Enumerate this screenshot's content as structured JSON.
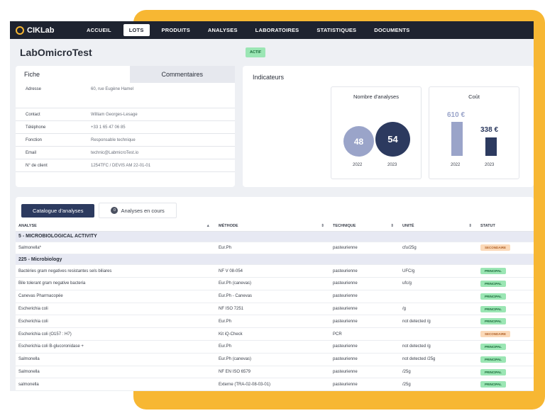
{
  "app": {
    "logo": "CIKLab"
  },
  "nav": [
    "ACCUEIL",
    "LOTS",
    "PRODUITS",
    "ANALYSES",
    "LABORATOIRES",
    "STATISTIQUES",
    "DOCUMENTS"
  ],
  "nav_active": "LOTS",
  "page": {
    "title": "LabOmicroTest",
    "status": "ACTIF"
  },
  "fiche": {
    "tabs": [
      "Fiche",
      "Commentaires"
    ],
    "fields": [
      {
        "label": "Adresse",
        "value": "60, rue Eugène Hamel"
      },
      {
        "label": "Contact",
        "value": "William Georges-Lesage"
      },
      {
        "label": "Téléphone",
        "value": "+33 1 65 47 06 85"
      },
      {
        "label": "Fonction",
        "value": "Responsable technique"
      },
      {
        "label": "Email",
        "value": "technic@LabmicroTest.io"
      },
      {
        "label": "N° de client",
        "value": "1254TFC / DEVIS AM 22-01-01"
      }
    ]
  },
  "indicators": {
    "title": "Indicateurs",
    "analyses": {
      "title": "Nombre d'analyses",
      "values": [
        {
          "year": "2022",
          "value": "48"
        },
        {
          "year": "2023",
          "value": "54"
        }
      ]
    },
    "cost": {
      "title": "Coût",
      "values": [
        {
          "year": "2022",
          "value": "610 €"
        },
        {
          "year": "2023",
          "value": "338 €"
        }
      ]
    }
  },
  "catalog": {
    "tabs": {
      "active": "Catalogue d'analyses",
      "inactive": "Analyses en cours",
      "inactive_count": "0"
    },
    "columns": [
      "ANALYSE",
      "MÉTHODE",
      "TECHNIQUE",
      "UNITÉ",
      "STATUT"
    ],
    "rows": [
      {
        "type": "group",
        "label": "5 - MICROBIOLOGICAL ACTIVITY"
      },
      {
        "analyse": "Salmonella*",
        "methode": "Eur.Ph",
        "technique": "pasteurienne",
        "unite": "cfu/25g",
        "statut": "SECONDAIRE"
      },
      {
        "type": "group",
        "label": "225 - Microbiology"
      },
      {
        "analyse": "Bactéries gram negatives resistantes sels biliares",
        "methode": "NF V 08-054",
        "technique": "pasteurienne",
        "unite": "UFC/g",
        "statut": "PRINCIPAL"
      },
      {
        "analyse": "Bile tolerant gram negative bacteria",
        "methode": "Eur.Ph (canevas)",
        "technique": "pasteurienne",
        "unite": "ufc/g",
        "statut": "PRINCIPAL"
      },
      {
        "analyse": "Canevas Pharmacopée",
        "methode": "Eur.Ph - Canevas",
        "technique": "pasteurienne",
        "unite": "",
        "statut": "PRINCIPAL"
      },
      {
        "analyse": "Escherichia coli",
        "methode": "NF ISO 7251",
        "technique": "pasteurienne",
        "unite": "/g",
        "statut": "PRINCIPAL"
      },
      {
        "analyse": "Escherichia coli",
        "methode": "Eur.Ph",
        "technique": "pasteurienne",
        "unite": "not detected /g",
        "statut": "PRINCIPAL"
      },
      {
        "analyse": "Escherichia coli (O157 : H7)",
        "methode": "Kit iQ-Check",
        "technique": "PCR",
        "unite": "",
        "statut": "SECONDAIRE"
      },
      {
        "analyse": "Escherichia coli B-glucoronidase +",
        "methode": "Eur.Ph",
        "technique": "pasteurienne",
        "unite": "not detected /g",
        "statut": "PRINCIPAL"
      },
      {
        "analyse": "Salmonella",
        "methode": "Eur.Ph (canevas)",
        "technique": "pasteurienne",
        "unite": "not detected /25g",
        "statut": "PRINCIPAL"
      },
      {
        "analyse": "Salmonella",
        "methode": "NF EN ISO 6579",
        "technique": "pasteurienne",
        "unite": "/25g",
        "statut": "PRINCIPAL"
      },
      {
        "analyse": "salmonella",
        "methode": "Externe (TRA-02-08-03-01)",
        "technique": "pasteurienne",
        "unite": "/25g",
        "statut": "PRINCIPAL"
      }
    ]
  },
  "colors": {
    "nav": "#1e2330",
    "accent": "#f7b733",
    "primary": "#2c3a5f",
    "light": "#9aa4c9"
  }
}
